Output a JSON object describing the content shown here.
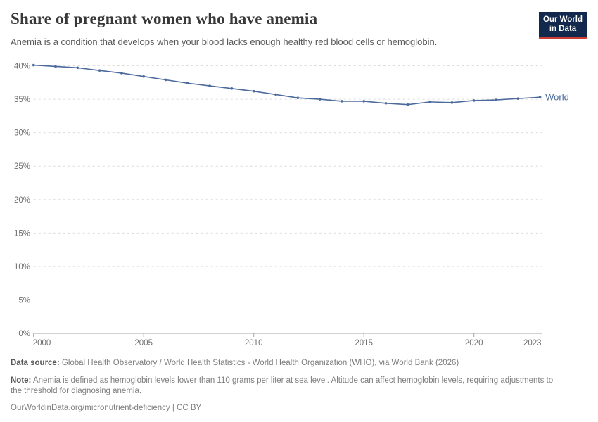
{
  "header": {
    "title": "Share of pregnant women who have anemia",
    "subtitle": "Anemia is a condition that develops when your blood lacks enough healthy red blood cells or hemoglobin.",
    "logo": {
      "line1": "Our World",
      "line2": "in Data",
      "bg_color": "#12294d",
      "accent_color": "#cd3d34"
    }
  },
  "chart_data": {
    "type": "line",
    "title": "Share of pregnant women who have anemia",
    "x": [
      2000,
      2001,
      2002,
      2003,
      2004,
      2005,
      2006,
      2007,
      2008,
      2009,
      2010,
      2011,
      2012,
      2013,
      2014,
      2015,
      2016,
      2017,
      2018,
      2019,
      2020,
      2021,
      2022,
      2023
    ],
    "series": [
      {
        "name": "World",
        "color": "#4c6a9c",
        "values": [
          40.1,
          39.9,
          39.7,
          39.3,
          38.9,
          38.4,
          37.9,
          37.4,
          37.0,
          36.6,
          36.2,
          35.7,
          35.2,
          35.0,
          34.7,
          34.7,
          34.4,
          34.2,
          34.6,
          34.5,
          34.8,
          34.9,
          35.1,
          35.3
        ]
      }
    ],
    "xlabel": "",
    "ylabel": "",
    "ylim": [
      0,
      40
    ],
    "yticks": [
      0,
      5,
      10,
      15,
      20,
      25,
      30,
      35,
      40
    ],
    "ytick_labels": [
      "0%",
      "5%",
      "10%",
      "15%",
      "20%",
      "25%",
      "30%",
      "35%",
      "40%"
    ],
    "xticks": [
      2000,
      2005,
      2010,
      2015,
      2020,
      2023
    ],
    "xtick_labels": [
      "2000",
      "2005",
      "2010",
      "2015",
      "2020",
      "2023"
    ],
    "grid": "horizontal-dashed",
    "grid_color": "#dcdcdc",
    "axis_color": "#a6a6a6",
    "tick_label_color": "#6e6e6e",
    "legend_position": "end-of-line"
  },
  "footer": {
    "data_source_label": "Data source:",
    "data_source": "Global Health Observatory / World Health Statistics - World Health Organization (WHO), via World Bank (2026)",
    "note_label": "Note:",
    "note": "Anemia is defined as hemoglobin levels lower than 110 grams per liter at sea level. Altitude can affect hemoglobin levels, requiring adjustments to the threshold for diagnosing anemia.",
    "link": "OurWorldinData.org/micronutrient-deficiency | CC BY"
  }
}
